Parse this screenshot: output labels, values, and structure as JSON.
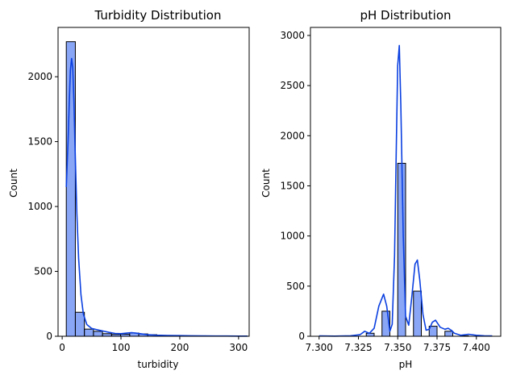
{
  "chart_data": [
    {
      "type": "histogram",
      "title": "Turbidity Distribution",
      "xlabel": "turbidity",
      "ylabel": "Count",
      "xlim": [
        -7,
        318
      ],
      "ylim": [
        0,
        2380
      ],
      "xticks": [
        0,
        100,
        200,
        300
      ],
      "yticks": [
        0,
        500,
        1000,
        1500,
        2000
      ],
      "bin_edges": [
        7,
        22.4,
        37.8,
        53.2,
        68.6,
        84,
        99.4,
        114.8,
        130.2,
        145.6,
        161,
        176.4,
        191.8,
        207.2,
        222.6,
        238,
        253.4,
        268.8,
        284.2,
        299.6,
        315
      ],
      "counts": [
        2270,
        185,
        55,
        38,
        20,
        14,
        16,
        25,
        18,
        12,
        6,
        4,
        6,
        3,
        2,
        1,
        1,
        1,
        0,
        1
      ],
      "kde": {
        "x": [
          7,
          10,
          12,
          14,
          16,
          18,
          20,
          22,
          25,
          28,
          32,
          36,
          42,
          50,
          60,
          70,
          80,
          90,
          100,
          110,
          118,
          125,
          135,
          145,
          160,
          180,
          200,
          220,
          240,
          260,
          280,
          300,
          315
        ],
        "y": [
          1150,
          1500,
          1800,
          2050,
          2140,
          2070,
          1800,
          1450,
          950,
          600,
          320,
          170,
          90,
          60,
          50,
          40,
          30,
          22,
          20,
          24,
          28,
          24,
          18,
          12,
          8,
          6,
          5,
          4,
          3,
          2,
          2,
          1,
          1
        ]
      }
    },
    {
      "type": "histogram",
      "title": "pH Distribution",
      "xlabel": "pH",
      "ylabel": "Count",
      "xlim": [
        7.2945,
        7.4155
      ],
      "ylim": [
        0,
        3080
      ],
      "xticks": [
        7.3,
        7.325,
        7.35,
        7.375,
        7.4
      ],
      "xtick_labels": [
        "7.300",
        "7.325",
        "7.350",
        "7.375",
        "7.400"
      ],
      "yticks": [
        0,
        500,
        1000,
        1500,
        2000,
        2500,
        3000
      ],
      "bin_edges": [
        7.3,
        7.305,
        7.31,
        7.315,
        7.32,
        7.325,
        7.33,
        7.335,
        7.34,
        7.345,
        7.35,
        7.355,
        7.36,
        7.365,
        7.37,
        7.375,
        7.38,
        7.385,
        7.39,
        7.395,
        7.4,
        7.405,
        7.41
      ],
      "counts": [
        0,
        0,
        0,
        0,
        0,
        0,
        30,
        0,
        250,
        0,
        1725,
        0,
        450,
        0,
        100,
        0,
        50,
        0,
        5,
        0,
        3,
        1
      ],
      "kde": {
        "x": [
          7.3,
          7.31,
          7.32,
          7.326,
          7.329,
          7.332,
          7.335,
          7.338,
          7.341,
          7.343,
          7.345,
          7.3465,
          7.348,
          7.349,
          7.35,
          7.351,
          7.352,
          7.3535,
          7.355,
          7.357,
          7.359,
          7.361,
          7.3625,
          7.364,
          7.366,
          7.368,
          7.37,
          7.372,
          7.374,
          7.377,
          7.38,
          7.382,
          7.384,
          7.386,
          7.39,
          7.395,
          7.4,
          7.405,
          7.41
        ],
        "y": [
          3,
          2,
          5,
          15,
          50,
          30,
          80,
          300,
          420,
          300,
          50,
          120,
          800,
          1800,
          2700,
          2900,
          2300,
          1000,
          200,
          110,
          400,
          720,
          760,
          560,
          220,
          60,
          70,
          140,
          160,
          90,
          70,
          80,
          60,
          30,
          10,
          20,
          10,
          5,
          3
        ]
      }
    }
  ]
}
